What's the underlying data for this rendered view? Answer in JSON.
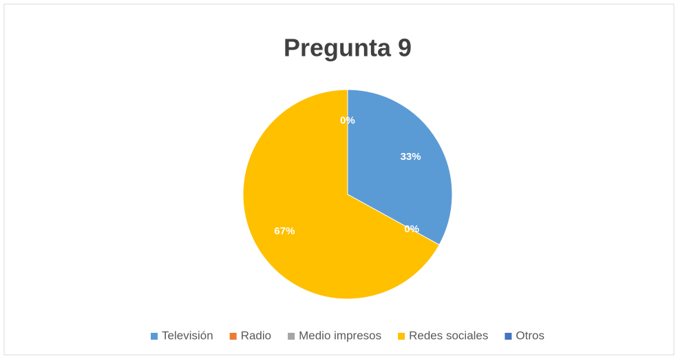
{
  "chart_data": {
    "type": "pie",
    "title": "Pregunta 9",
    "categories": [
      "Televisión",
      "Radio",
      "Medio impresos",
      "Redes sociales",
      "Otros"
    ],
    "values": [
      33,
      0,
      0,
      67,
      0
    ],
    "value_labels": [
      "33%",
      "0%",
      null,
      "67%",
      "0%"
    ],
    "colors": [
      "#5b9bd5",
      "#ed7d31",
      "#a5a5a5",
      "#ffc000",
      "#4472c4"
    ],
    "legend": "bottom"
  }
}
